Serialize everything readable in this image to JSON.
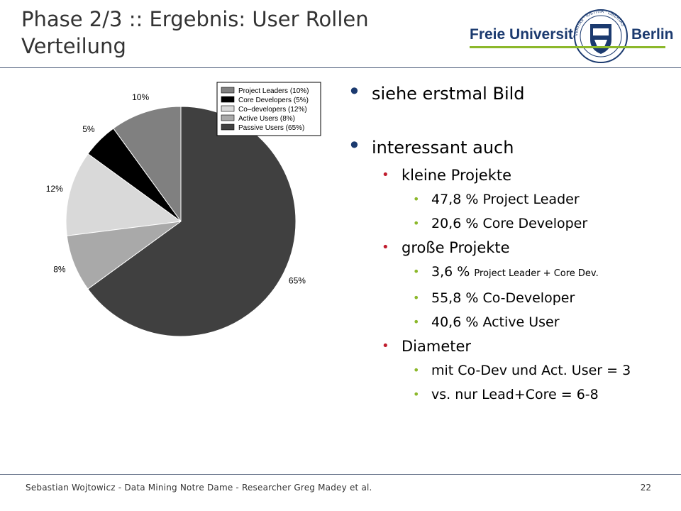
{
  "slide": {
    "title": "Phase 2/3 :: Ergebnis: User Rollen Verteilung"
  },
  "logo": {
    "left_word": "Freie Universität",
    "right_word": "Berlin",
    "seal_text": "VERITAS · IUSTITIA · LIBERTAS",
    "brand_color": "#1b3a6f",
    "accent_color": "#8cb82b"
  },
  "bullets": [
    {
      "text": "siehe erstmal Bild",
      "children": []
    },
    {
      "text": "interessant auch",
      "children": [
        {
          "text": "kleine Projekte",
          "children": [
            {
              "text": "47,8 % Project Leader"
            },
            {
              "text": "20,6 % Core Developer"
            }
          ]
        },
        {
          "text": "große Projekte",
          "children": [
            {
              "text": "3,6 % ",
              "small": "Project Leader + Core Dev."
            },
            {
              "text": "55,8 % Co-Developer"
            },
            {
              "text": "40,6 % Active User"
            }
          ]
        },
        {
          "text": "Diameter",
          "children": [
            {
              "text": "mit Co-Dev und Act. User = 3"
            },
            {
              "text": "vs. nur Lead+Core = 6-8"
            }
          ]
        }
      ]
    }
  ],
  "footer": {
    "text": "Sebastian Wojtowicz - Data Mining Notre Dame - Researcher Greg Madey et al.",
    "page": "22"
  },
  "colors": {
    "level1_bullet": "#1b3a6f",
    "level2_bullet": "#c01d2e",
    "level3_bullet": "#8cb82b"
  },
  "chart_data": {
    "type": "pie",
    "categories": [
      "Project Leaders (10%)",
      "Core Developers (5%)",
      "Co–developers (12%)",
      "Active Users (8%)",
      "Passive Users (65%)"
    ],
    "values": [
      10,
      5,
      12,
      8,
      65
    ],
    "value_labels": [
      "10%",
      "5%",
      "12%",
      "8%",
      "65%"
    ],
    "colors": [
      "#808080",
      "#000000",
      "#d9d9d9",
      "#a9a9a9",
      "#404040"
    ],
    "legend": "top-right",
    "start": "12 o'clock",
    "direction": "counter-clockwise"
  }
}
